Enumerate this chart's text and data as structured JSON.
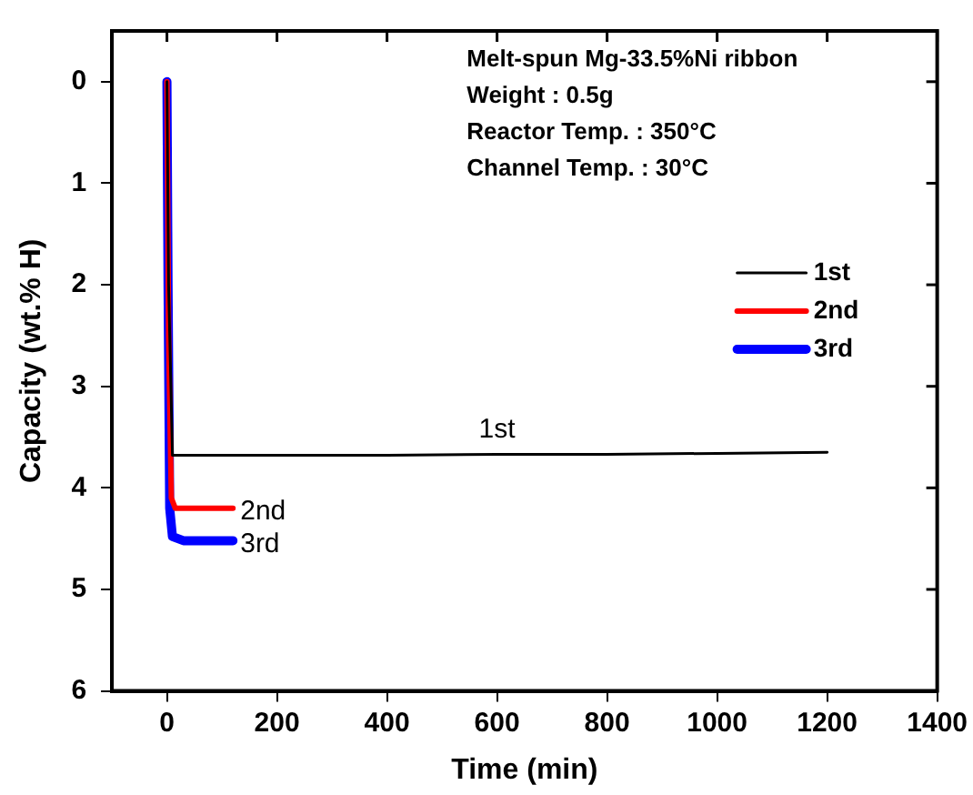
{
  "chart_data": {
    "type": "line",
    "xlabel": "Time (min)",
    "ylabel": "Capacity (wt.% H)",
    "xlim": [
      -100,
      1400
    ],
    "xticks": [
      0,
      200,
      400,
      600,
      800,
      1000,
      1200,
      1400
    ],
    "ylim": [
      6,
      -0.5
    ],
    "yticks": [
      0,
      1,
      2,
      3,
      4,
      5,
      6
    ],
    "grid": false,
    "legend": "top right",
    "marker": "none",
    "line_style": "solid",
    "series": [
      {
        "name": "1st",
        "color": "#000000",
        "x": [
          0,
          3,
          10,
          200,
          400,
          600,
          800,
          1000,
          1200
        ],
        "values": [
          0,
          2,
          3.68,
          3.68,
          3.68,
          3.67,
          3.67,
          3.66,
          3.65
        ]
      },
      {
        "name": "2nd",
        "color": "#ff0000",
        "x": [
          0,
          3,
          8,
          15,
          120
        ],
        "values": [
          0,
          2.5,
          4.1,
          4.2,
          4.2
        ]
      },
      {
        "name": "3rd",
        "color": "#0000ff",
        "x": [
          0,
          2,
          5,
          10,
          30,
          120
        ],
        "values": [
          0,
          2,
          4.2,
          4.48,
          4.52,
          4.52
        ]
      }
    ],
    "annotations": [
      "Melt-spun Mg-33.5%Ni ribbon",
      "Weight : 0.5g",
      "Reactor Temp. : 350°C",
      "Channel Temp. : 30°C"
    ]
  }
}
